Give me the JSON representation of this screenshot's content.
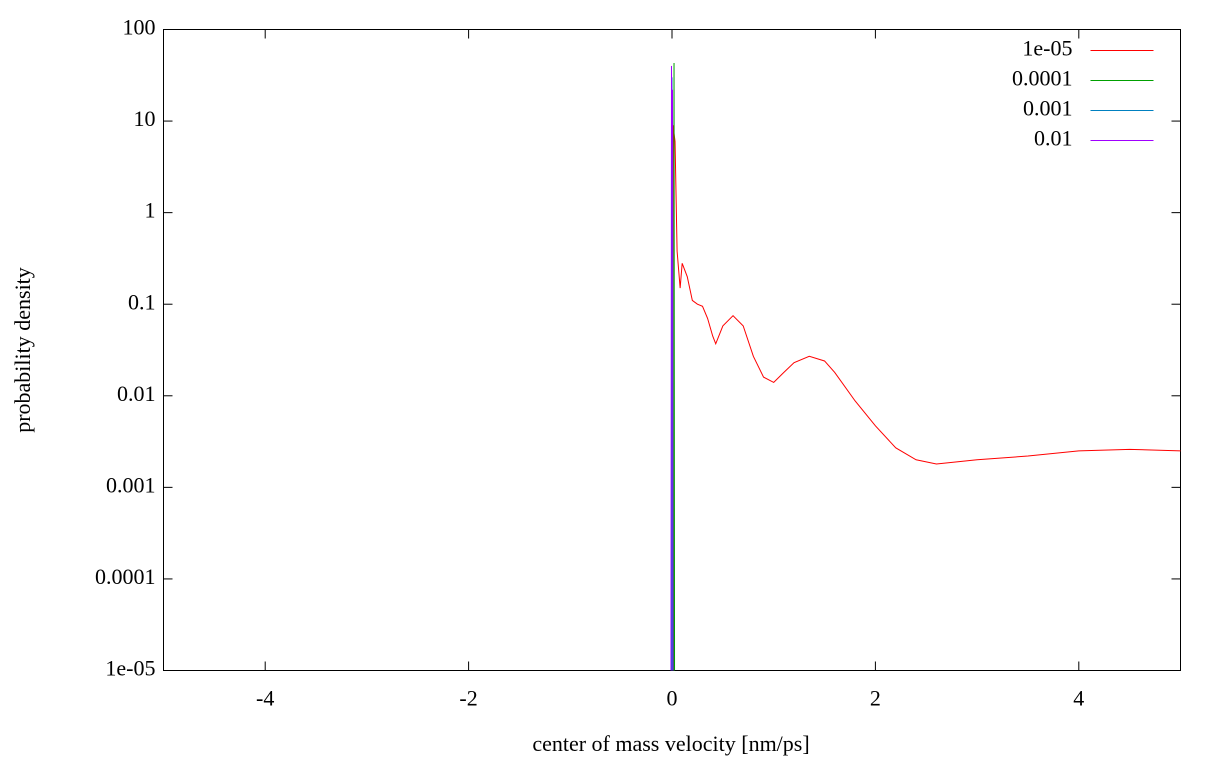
{
  "chart_data": {
    "type": "line",
    "xlabel": "center of mass velocity [nm/ps]",
    "ylabel": "probability density",
    "logscale": "y",
    "xlim": [
      -5,
      5
    ],
    "xticks": [
      -4,
      -2,
      0,
      2,
      4
    ],
    "ylim": [
      1e-05,
      100
    ],
    "yticks": [
      {
        "value": 1e-05,
        "label": "1e-05"
      },
      0.0001,
      0.001,
      0.01,
      0.1,
      1,
      10,
      100
    ],
    "legend": "top-right",
    "series": [
      {
        "name": "1e-05",
        "color": "#ff0000",
        "x": [
          0.0,
          0.01,
          0.03,
          0.05,
          0.08,
          0.1,
          0.15,
          0.2,
          0.25,
          0.3,
          0.35,
          0.4,
          0.43,
          0.5,
          0.6,
          0.7,
          0.8,
          0.9,
          1.0,
          1.1,
          1.2,
          1.35,
          1.5,
          1.6,
          1.8,
          2.0,
          2.2,
          2.4,
          2.6,
          2.8,
          3.0,
          3.5,
          4.0,
          4.5,
          5.0
        ],
        "values": [
          1e-05,
          9,
          6,
          0.38,
          0.15,
          0.28,
          0.2,
          0.11,
          0.1,
          0.095,
          0.07,
          0.045,
          0.037,
          0.058,
          0.075,
          0.058,
          0.027,
          0.016,
          0.014,
          0.018,
          0.023,
          0.027,
          0.024,
          0.018,
          0.0088,
          0.0047,
          0.0027,
          0.002,
          0.0018,
          0.0019,
          0.002,
          0.0022,
          0.0025,
          0.0026,
          0.0025
        ]
      },
      {
        "name": "0.0001",
        "color": "#00a000",
        "x": [
          0.015,
          0.02,
          0.025
        ],
        "values": [
          1e-05,
          43,
          1e-05
        ]
      },
      {
        "name": "0.001",
        "color": "#0080c0",
        "x": [
          -0.005,
          0.0,
          0.005
        ],
        "values": [
          1e-05,
          30,
          1e-05
        ]
      },
      {
        "name": "0.01",
        "color": "#a000ff",
        "x": [
          -0.01,
          -0.005,
          0.0,
          0.005,
          0.01
        ],
        "values": [
          1e-05,
          40,
          7,
          22,
          1e-05
        ]
      }
    ]
  }
}
